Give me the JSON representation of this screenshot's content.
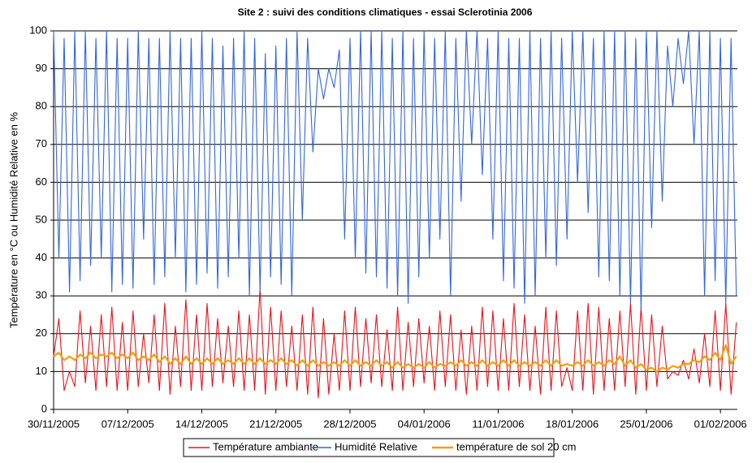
{
  "chart_data": {
    "type": "line",
    "title": "Site 2 : suivi des conditions climatiques - essai Sclerotinia 2006",
    "y_label": "Température en °C ou Humidité Relative en %",
    "x": [
      0,
      0.5,
      1,
      1.5,
      2,
      2.5,
      3,
      3.5,
      4,
      4.5,
      5,
      5.5,
      6,
      6.5,
      7,
      7.5,
      8,
      8.5,
      9,
      9.5,
      10,
      10.5,
      11,
      11.5,
      12,
      12.5,
      13,
      13.5,
      14,
      14.5,
      15,
      15.5,
      16,
      16.5,
      17,
      17.5,
      18,
      18.5,
      19,
      19.5,
      20,
      20.5,
      21,
      21.5,
      22,
      22.5,
      23,
      23.5,
      24,
      24.5,
      25,
      25.5,
      26,
      26.5,
      27,
      27.5,
      28,
      28.5,
      29,
      29.5,
      30,
      30.5,
      31,
      31.5,
      32,
      32.5,
      33,
      33.5,
      34,
      34.5,
      35,
      35.5,
      36,
      36.5,
      37,
      37.5,
      38,
      38.5,
      39,
      39.5,
      40,
      40.5,
      41,
      41.5,
      42,
      42.5,
      43,
      43.5,
      44,
      44.5,
      45,
      45.5,
      46,
      46.5,
      47,
      47.5,
      48,
      48.5,
      49,
      49.5,
      50,
      50.5,
      51,
      51.5,
      52,
      52.5,
      53,
      53.5,
      54,
      54.5,
      55,
      55.5,
      56,
      56.5,
      57,
      57.5,
      58,
      58.5,
      59,
      59.5,
      60,
      60.5,
      61,
      61.5,
      62,
      62.5,
      63,
      63.5,
      64,
      64.5
    ],
    "xlim": [
      0,
      64.6
    ],
    "xticks": [
      {
        "value": 0,
        "label": "30/11/2005"
      },
      {
        "value": 7,
        "label": "07/12/2005"
      },
      {
        "value": 14,
        "label": "14/12/2005"
      },
      {
        "value": 21,
        "label": "21/12/2005"
      },
      {
        "value": 28,
        "label": "28/12/2005"
      },
      {
        "value": 35,
        "label": "04/01/2006"
      },
      {
        "value": 42,
        "label": "11/01/2006"
      },
      {
        "value": 49,
        "label": "18/01/2006"
      },
      {
        "value": 56,
        "label": "25/01/2006"
      },
      {
        "value": 63,
        "label": "01/02/2006"
      }
    ],
    "ylim": [
      0,
      100
    ],
    "yticks": [
      0,
      10,
      20,
      30,
      40,
      50,
      60,
      70,
      80,
      90,
      100
    ],
    "grid": true,
    "legend": "bottom",
    "series": [
      {
        "name": "Température ambiante",
        "color": "#e8141c",
        "values": [
          14,
          24,
          5,
          10,
          6,
          26,
          7,
          22,
          5,
          25,
          6,
          27,
          5,
          23,
          5,
          26,
          6,
          20,
          7,
          25,
          5,
          28,
          4,
          22,
          6,
          29,
          5,
          25,
          5,
          28,
          6,
          24,
          7,
          22,
          6,
          26,
          5,
          25,
          5,
          32,
          4,
          27,
          5,
          26,
          6,
          22,
          5,
          25,
          4,
          27,
          3,
          24,
          4,
          20,
          5,
          26,
          5,
          27,
          6,
          24,
          7,
          25,
          6,
          21,
          5,
          27,
          5,
          23,
          6,
          24,
          7,
          22,
          5,
          26,
          6,
          25,
          5,
          21,
          4,
          22,
          5,
          27,
          6,
          26,
          5,
          24,
          5,
          28,
          6,
          25,
          5,
          22,
          4,
          27,
          5,
          26,
          6,
          11,
          5,
          26,
          5,
          28,
          4,
          27,
          5,
          24,
          5,
          26,
          6,
          28,
          4,
          27,
          5,
          25,
          6,
          22,
          8,
          10,
          9,
          13,
          8,
          16,
          7,
          20,
          6,
          26,
          5,
          28,
          4,
          23
        ]
      },
      {
        "name": "Humidité Relative",
        "color": "#3366e0",
        "values": [
          100,
          40,
          98,
          31,
          100,
          34,
          100,
          38,
          98,
          40,
          100,
          31,
          98,
          33,
          98,
          32,
          100,
          45,
          98,
          33,
          98,
          35,
          100,
          40,
          98,
          31,
          98,
          33,
          100,
          36,
          98,
          32,
          96,
          35,
          98,
          40,
          100,
          30,
          98,
          31,
          94,
          35,
          96,
          33,
          98,
          30,
          100,
          50,
          98,
          68,
          90,
          82,
          90,
          85,
          95,
          45,
          98,
          40,
          100,
          36,
          100,
          35,
          100,
          32,
          98,
          30,
          100,
          28,
          98,
          35,
          100,
          40,
          98,
          45,
          100,
          30,
          98,
          55,
          100,
          70,
          100,
          62,
          98,
          45,
          100,
          34,
          98,
          32,
          98,
          28,
          100,
          30,
          98,
          40,
          100,
          38,
          98,
          45,
          100,
          60,
          100,
          52,
          98,
          35,
          100,
          34,
          100,
          30,
          100,
          28,
          98,
          26,
          100,
          48,
          100,
          55,
          96,
          80,
          98,
          86,
          100,
          70,
          100,
          30,
          100,
          34,
          98,
          28,
          98,
          30
        ]
      },
      {
        "name": "température de sol 20 cm",
        "color": "#f0a010",
        "values": [
          14,
          15,
          13,
          14,
          13,
          14.5,
          13.5,
          15,
          13.5,
          14.5,
          14,
          15,
          13.5,
          14.5,
          13.5,
          15,
          13,
          14,
          13,
          14.5,
          12.5,
          14,
          12,
          13.5,
          12,
          14,
          12,
          13.5,
          12,
          13.5,
          12,
          13.5,
          12,
          13,
          12,
          13.5,
          12,
          13.5,
          12,
          13.5,
          12,
          13,
          12,
          13.5,
          12,
          13,
          11.5,
          13,
          11.5,
          13,
          11.5,
          12.5,
          11.5,
          12.5,
          11.5,
          13,
          11.5,
          13,
          11.5,
          12.5,
          11.5,
          13,
          11.5,
          12.5,
          11,
          12.5,
          11,
          12,
          11,
          12,
          11,
          12.5,
          11,
          12,
          11.5,
          12.5,
          11.5,
          13,
          11.5,
          12.5,
          11.5,
          13,
          11.5,
          12.5,
          11.5,
          13,
          11.5,
          13,
          11.5,
          12.5,
          11.5,
          12.5,
          11.5,
          13,
          11.5,
          13,
          11.5,
          12,
          11.5,
          12.5,
          11.5,
          13,
          11.5,
          12.5,
          11.5,
          13,
          12,
          14,
          11.5,
          13,
          11,
          12,
          10.5,
          11,
          10,
          11,
          10.5,
          11.5,
          11,
          12,
          12,
          13,
          12.5,
          14,
          13,
          15,
          13,
          17,
          12,
          14
        ]
      }
    ]
  }
}
